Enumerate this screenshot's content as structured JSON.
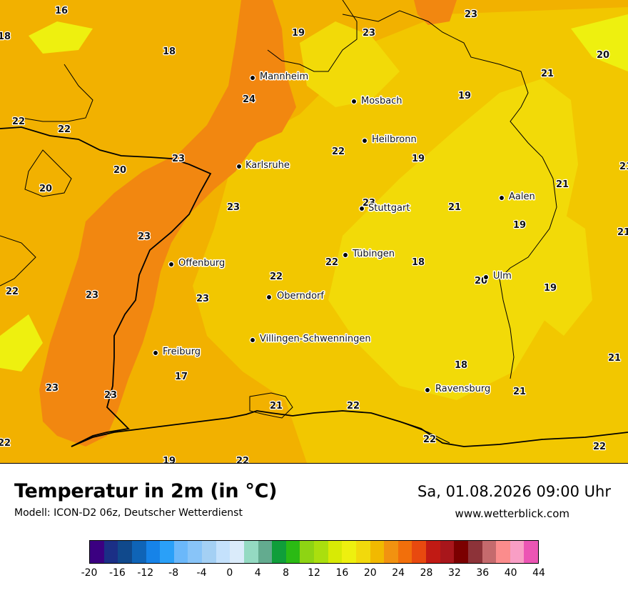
{
  "map": {
    "colors": {
      "t17_18": "#f2da08",
      "t18_20": "#f2c700",
      "t20_22": "#f2b100",
      "t22_24": "#f28710",
      "t16_17": "#eef00f",
      "border": "#000000"
    },
    "cities": [
      {
        "name": "Mannheim"
      },
      {
        "name": "Mosbach"
      },
      {
        "name": "Heilbronn"
      },
      {
        "name": "Karlsruhe"
      },
      {
        "name": "Stuttgart"
      },
      {
        "name": "Aalen"
      },
      {
        "name": "Tübingen"
      },
      {
        "name": "Offenburg"
      },
      {
        "name": "Oberndorf"
      },
      {
        "name": "Ulm"
      },
      {
        "name": "Villingen-Schwenningen"
      },
      {
        "name": "Freiburg"
      },
      {
        "name": "Ravensburg"
      }
    ],
    "temperature_labels": [
      "16",
      "23",
      "18",
      "18",
      "19",
      "23",
      "20",
      "21",
      "24",
      "19",
      "22",
      "22",
      "22",
      "19",
      "23",
      "20",
      "20",
      "21",
      "21",
      "23",
      "23",
      "21",
      "21",
      "19",
      "23",
      "22",
      "18",
      "22",
      "23",
      "23",
      "20",
      "19",
      "22",
      "21",
      "17",
      "18",
      "23",
      "23",
      "21",
      "22",
      "21",
      "22",
      "22",
      "19",
      "22",
      "22"
    ]
  },
  "footer": {
    "title": "Temperatur in 2m (in °C)",
    "subtitle": "Modell: ICON-D2 06z, Deutscher Wetterdienst",
    "datetime": "Sa, 01.08.2026 09:00 Uhr",
    "website": "www.wetterblick.com"
  },
  "legend": {
    "colors": [
      "#3b0081",
      "#1b2f86",
      "#10498c",
      "#0f64b7",
      "#1683e8",
      "#2aa0f8",
      "#6bb8fa",
      "#88c4f8",
      "#a4d0f4",
      "#c4e1fc",
      "#daebfa",
      "#94dac2",
      "#63ab8f",
      "#109e3a",
      "#2bba14",
      "#8ed413",
      "#aadf0e",
      "#d8ea05",
      "#eef00f",
      "#f2d90c",
      "#f2b900",
      "#f29210",
      "#f26f0b",
      "#e8490f",
      "#c11a14",
      "#a8161b",
      "#7b0000",
      "#8d3339",
      "#c56a6d",
      "#fb8c8c",
      "#f99ec5",
      "#ec55b4"
    ],
    "ticks": [
      "-20",
      "-16",
      "-12",
      "-8",
      "-4",
      "0",
      "4",
      "8",
      "12",
      "16",
      "20",
      "24",
      "28",
      "32",
      "36",
      "40",
      "44"
    ]
  }
}
